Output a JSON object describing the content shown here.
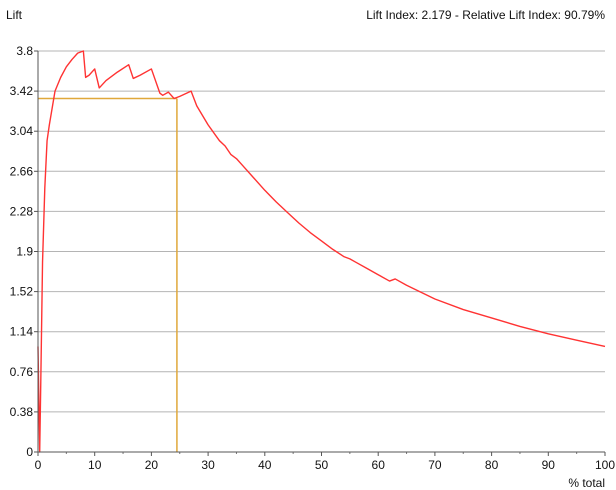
{
  "chart_data": {
    "type": "line",
    "ylabel": "Lift",
    "xlabel": "% total",
    "header_text": "Lift Index: 2.179 - Relative Lift Index: 90.79%",
    "xlim": [
      0,
      100
    ],
    "ylim": [
      0,
      3.8
    ],
    "x_ticks": [
      "0",
      "10",
      "20",
      "30",
      "40",
      "50",
      "60",
      "70",
      "80",
      "90",
      "100"
    ],
    "y_ticks": [
      "0",
      "0.38",
      "0.76",
      "1.14",
      "1.52",
      "1.9",
      "2.28",
      "2.66",
      "3.04",
      "3.42",
      "3.8"
    ],
    "grid": "horizontal",
    "series": [
      {
        "color": "#ff3333",
        "points": [
          [
            0.0,
            1.0
          ],
          [
            0.3,
            0.0
          ],
          [
            0.5,
            0.7
          ],
          [
            0.8,
            1.8
          ],
          [
            1.2,
            2.5
          ],
          [
            1.6,
            2.95
          ],
          [
            2.0,
            3.1
          ],
          [
            3.0,
            3.42
          ],
          [
            4.0,
            3.55
          ],
          [
            5.0,
            3.65
          ],
          [
            6.0,
            3.72
          ],
          [
            7.0,
            3.78
          ],
          [
            8.0,
            3.8
          ],
          [
            8.4,
            3.55
          ],
          [
            9.0,
            3.57
          ],
          [
            10.0,
            3.63
          ],
          [
            10.8,
            3.45
          ],
          [
            12.0,
            3.52
          ],
          [
            14.0,
            3.6
          ],
          [
            16.0,
            3.67
          ],
          [
            16.8,
            3.54
          ],
          [
            18.0,
            3.57
          ],
          [
            20.0,
            3.63
          ],
          [
            21.5,
            3.4
          ],
          [
            22.0,
            3.38
          ],
          [
            23.0,
            3.41
          ],
          [
            24.0,
            3.35
          ],
          [
            25.0,
            3.37
          ],
          [
            27.0,
            3.42
          ],
          [
            28.0,
            3.28
          ],
          [
            30.0,
            3.1
          ],
          [
            32.0,
            2.95
          ],
          [
            33.0,
            2.9
          ],
          [
            34.0,
            2.82
          ],
          [
            35.0,
            2.78
          ],
          [
            36.0,
            2.72
          ],
          [
            38.0,
            2.6
          ],
          [
            40.0,
            2.48
          ],
          [
            42.0,
            2.37
          ],
          [
            44.0,
            2.27
          ],
          [
            46.0,
            2.17
          ],
          [
            48.0,
            2.08
          ],
          [
            50.0,
            2.0
          ],
          [
            52.0,
            1.92
          ],
          [
            54.0,
            1.85
          ],
          [
            55.0,
            1.83
          ],
          [
            56.0,
            1.8
          ],
          [
            58.0,
            1.74
          ],
          [
            60.0,
            1.68
          ],
          [
            62.0,
            1.62
          ],
          [
            63.0,
            1.64
          ],
          [
            65.0,
            1.58
          ],
          [
            70.0,
            1.45
          ],
          [
            75.0,
            1.35
          ],
          [
            80.0,
            1.27
          ],
          [
            85.0,
            1.19
          ],
          [
            90.0,
            1.12
          ],
          [
            95.0,
            1.06
          ],
          [
            100.0,
            1.0
          ]
        ]
      }
    ],
    "reference_lines": {
      "color": "#e0a83a",
      "x": 24.5,
      "y": 3.35
    }
  }
}
